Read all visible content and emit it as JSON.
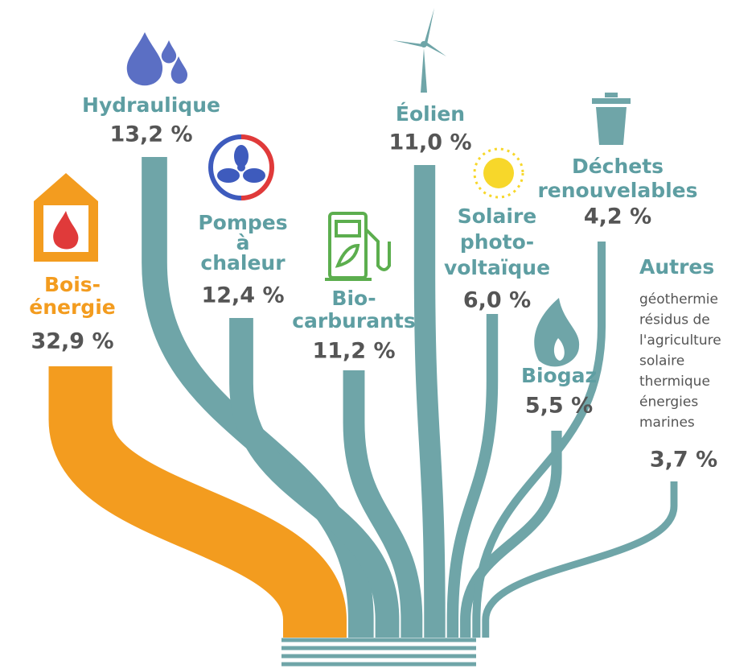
{
  "chart_data": {
    "type": "sankey",
    "categories": [
      [
        "Bois-",
        "énergie"
      ],
      [
        "Hydraulique"
      ],
      [
        "Pompes",
        "à",
        "chaleur"
      ],
      [
        "Bio-",
        "carburants"
      ],
      [
        "Éolien"
      ],
      [
        "Solaire",
        "photo-",
        "voltaïque"
      ],
      [
        "Biogaz"
      ],
      [
        "Déchets",
        "renouvelables"
      ],
      [
        "Autres"
      ]
    ],
    "values": [
      32.9,
      13.2,
      12.4,
      11.2,
      11.0,
      6.0,
      5.5,
      4.2,
      3.7
    ],
    "value_labels": [
      "32,9 %",
      "13,2 %",
      "12,4 %",
      "11,2 %",
      "11,0 %",
      "6,0 %",
      "5,5 %",
      "4,2 %",
      "3,7 %"
    ],
    "notes": [
      "géothermie",
      "résidus de",
      "l'agriculture",
      "solaire",
      "thermique",
      "énergies",
      "marines"
    ],
    "colors": [
      "#f39c1f",
      "#6fa5a8",
      "#6fa5a8",
      "#6fa5a8",
      "#6fa5a8",
      "#6fa5a8",
      "#6fa5a8",
      "#6fa5a8",
      "#6fa5a8"
    ],
    "label_colors": [
      "#f39c1f",
      "#5e9ea2",
      "#5e9ea2",
      "#5e9ea2",
      "#5e9ea2",
      "#5e9ea2",
      "#5e9ea2",
      "#5e9ea2",
      "#5e9ea2"
    ]
  }
}
